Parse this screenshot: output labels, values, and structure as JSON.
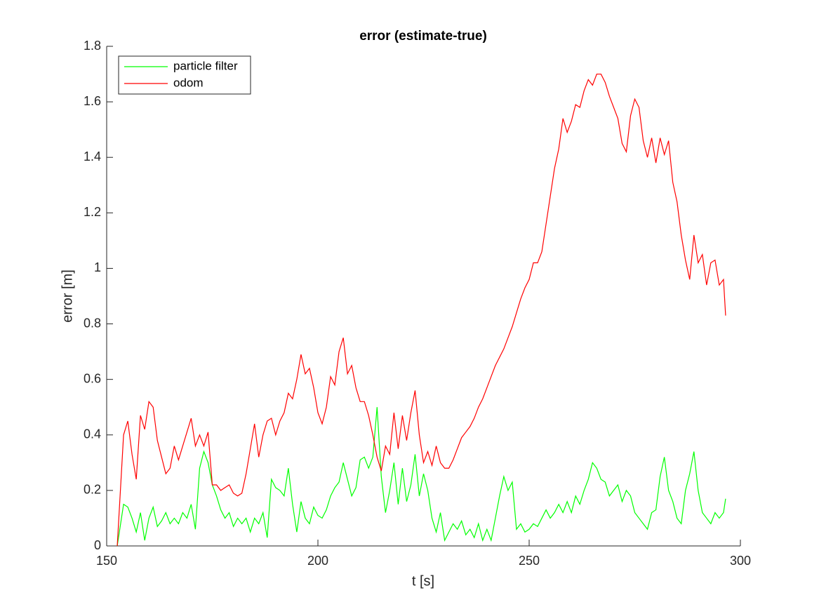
{
  "chart_data": {
    "type": "line",
    "title": "error (estimate-true)",
    "xlabel": "t [s]",
    "ylabel": "error [m]",
    "x": [
      152.5,
      154,
      155,
      156,
      157,
      158,
      159,
      160,
      161,
      162,
      163,
      164,
      165,
      166,
      167,
      168,
      169,
      170,
      171,
      172,
      173,
      174,
      175,
      176,
      177,
      178,
      179,
      180,
      181,
      182,
      183,
      184,
      185,
      186,
      187,
      188,
      189,
      190,
      191,
      192,
      193,
      194,
      195,
      196,
      197,
      198,
      199,
      200,
      201,
      202,
      203,
      204,
      205,
      206,
      207,
      208,
      209,
      210,
      211,
      212,
      213,
      214,
      215,
      216,
      217,
      218,
      219,
      220,
      221,
      222,
      223,
      224,
      225,
      226,
      227,
      228,
      229,
      230,
      231,
      232,
      233,
      234,
      235,
      236,
      237,
      238,
      239,
      240,
      241,
      242,
      243,
      244,
      245,
      246,
      247,
      248,
      249,
      250,
      251,
      252,
      253,
      254,
      255,
      256,
      257,
      258,
      259,
      260,
      261,
      262,
      263,
      264,
      265,
      266,
      267,
      268,
      269,
      270,
      271,
      272,
      273,
      274,
      275,
      276,
      277,
      278,
      279,
      280,
      281,
      282,
      283,
      284,
      285,
      286,
      287,
      288,
      289,
      290,
      291,
      292,
      293,
      294,
      295,
      296,
      296.5
    ],
    "series": [
      {
        "name": "particle filter",
        "color": "#00ff00",
        "values": [
          0,
          0.15,
          0.14,
          0.1,
          0.05,
          0.12,
          0.02,
          0.1,
          0.14,
          0.07,
          0.09,
          0.12,
          0.08,
          0.1,
          0.08,
          0.12,
          0.1,
          0.15,
          0.06,
          0.28,
          0.34,
          0.3,
          0.22,
          0.18,
          0.13,
          0.1,
          0.12,
          0.07,
          0.1,
          0.08,
          0.1,
          0.05,
          0.1,
          0.08,
          0.12,
          0.03,
          0.24,
          0.21,
          0.2,
          0.18,
          0.28,
          0.15,
          0.05,
          0.16,
          0.1,
          0.08,
          0.14,
          0.11,
          0.1,
          0.13,
          0.18,
          0.21,
          0.23,
          0.3,
          0.24,
          0.18,
          0.21,
          0.31,
          0.32,
          0.28,
          0.32,
          0.5,
          0.25,
          0.12,
          0.2,
          0.3,
          0.15,
          0.28,
          0.16,
          0.22,
          0.33,
          0.18,
          0.26,
          0.2,
          0.1,
          0.05,
          0.12,
          0.02,
          0.05,
          0.08,
          0.06,
          0.09,
          0.04,
          0.06,
          0.03,
          0.08,
          0.02,
          0.06,
          0.02,
          0.1,
          0.18,
          0.25,
          0.2,
          0.23,
          0.06,
          0.08,
          0.05,
          0.06,
          0.08,
          0.07,
          0.1,
          0.13,
          0.1,
          0.12,
          0.15,
          0.12,
          0.16,
          0.12,
          0.18,
          0.15,
          0.2,
          0.24,
          0.3,
          0.28,
          0.24,
          0.23,
          0.18,
          0.2,
          0.22,
          0.16,
          0.2,
          0.18,
          0.12,
          0.1,
          0.08,
          0.06,
          0.12,
          0.13,
          0.25,
          0.32,
          0.2,
          0.16,
          0.1,
          0.08,
          0.2,
          0.26,
          0.34,
          0.2,
          0.12,
          0.1,
          0.08,
          0.12,
          0.1,
          0.12,
          0.17
        ]
      },
      {
        "name": "odom",
        "color": "#ff0000",
        "values": [
          0,
          0.4,
          0.45,
          0.33,
          0.24,
          0.47,
          0.42,
          0.52,
          0.5,
          0.38,
          0.32,
          0.26,
          0.28,
          0.36,
          0.31,
          0.36,
          0.41,
          0.46,
          0.36,
          0.4,
          0.36,
          0.41,
          0.22,
          0.22,
          0.2,
          0.21,
          0.22,
          0.19,
          0.18,
          0.19,
          0.26,
          0.35,
          0.44,
          0.32,
          0.4,
          0.45,
          0.46,
          0.4,
          0.45,
          0.48,
          0.55,
          0.53,
          0.6,
          0.69,
          0.62,
          0.64,
          0.57,
          0.48,
          0.44,
          0.5,
          0.61,
          0.58,
          0.7,
          0.75,
          0.62,
          0.65,
          0.57,
          0.52,
          0.52,
          0.47,
          0.4,
          0.32,
          0.27,
          0.36,
          0.33,
          0.48,
          0.35,
          0.47,
          0.38,
          0.48,
          0.56,
          0.4,
          0.3,
          0.34,
          0.29,
          0.36,
          0.3,
          0.28,
          0.28,
          0.31,
          0.35,
          0.39,
          0.41,
          0.43,
          0.46,
          0.5,
          0.53,
          0.57,
          0.61,
          0.65,
          0.68,
          0.71,
          0.75,
          0.79,
          0.84,
          0.89,
          0.93,
          0.96,
          1.02,
          1.02,
          1.06,
          1.16,
          1.26,
          1.36,
          1.43,
          1.54,
          1.49,
          1.53,
          1.59,
          1.58,
          1.64,
          1.68,
          1.66,
          1.7,
          1.7,
          1.67,
          1.62,
          1.58,
          1.54,
          1.45,
          1.42,
          1.55,
          1.61,
          1.58,
          1.46,
          1.4,
          1.47,
          1.38,
          1.47,
          1.41,
          1.46,
          1.31,
          1.24,
          1.12,
          1.03,
          0.96,
          1.12,
          1.02,
          1.05,
          0.94,
          1.02,
          1.03,
          0.94,
          0.96,
          0.83
        ]
      }
    ],
    "xlim": [
      150,
      300
    ],
    "xticks": [
      150,
      200,
      250,
      300
    ],
    "ylim": [
      0,
      1.8
    ],
    "yticks": [
      0,
      0.2,
      0.4,
      0.6,
      0.8,
      1,
      1.2,
      1.4,
      1.6,
      1.8
    ],
    "legend": "northwest"
  }
}
